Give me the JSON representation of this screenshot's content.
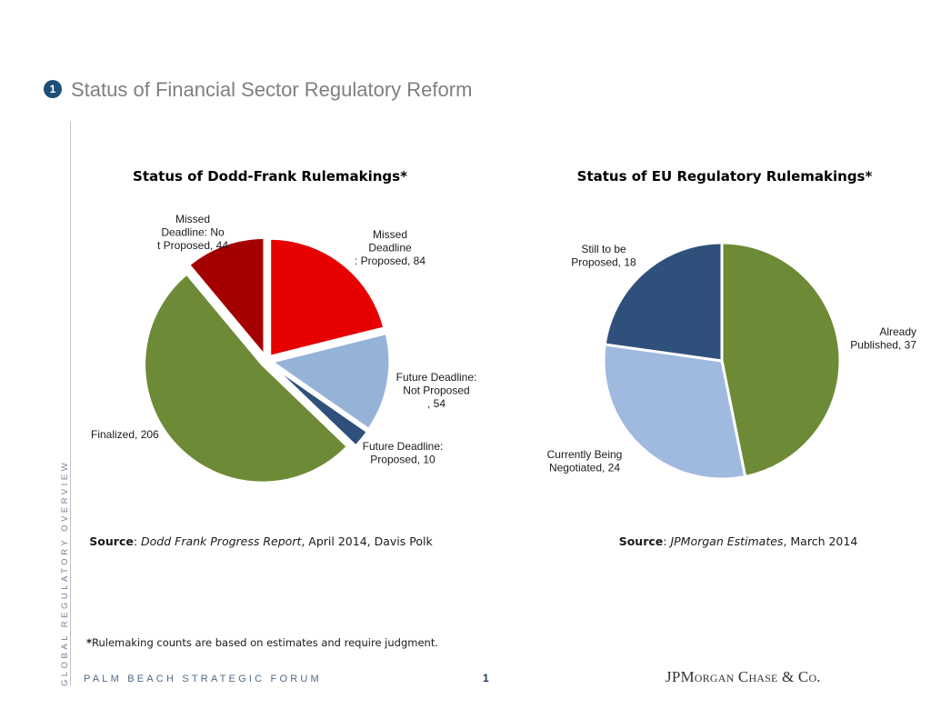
{
  "header": {
    "badge": "1",
    "title": "Status of Financial Sector Regulatory Reform"
  },
  "side_label": "GLOBAL REGULATORY OVERVIEW",
  "chart_data": [
    {
      "type": "pie",
      "title": "Status of Dodd-Frank Rulemakings*",
      "slices": [
        {
          "label": "Missed Deadline: Proposed, 84",
          "value": 84,
          "color": "#e60000"
        },
        {
          "label": "Future Deadline: Not Proposed, 54",
          "value": 54,
          "color": "#95b3d7"
        },
        {
          "label": "Future Deadline: Proposed, 10",
          "value": 10,
          "color": "#2f507a"
        },
        {
          "label": "Finalized, 206",
          "value": 206,
          "color": "#6d8a36"
        },
        {
          "label": "Missed Deadline: Not Proposed, 44",
          "value": 44,
          "color": "#a50000"
        }
      ]
    },
    {
      "type": "pie",
      "title": "Status of EU Regulatory Rulemakings*",
      "slices": [
        {
          "label": "Already Published, 37",
          "value": 37,
          "color": "#6d8a36"
        },
        {
          "label": "Currently Being Negotiated, 24",
          "value": 24,
          "color": "#9fb9df"
        },
        {
          "label": "Still to be Proposed, 18",
          "value": 18,
          "color": "#2f507a"
        }
      ]
    }
  ],
  "sources": [
    {
      "label": "Source",
      "italic": "Dodd Frank Progress Report",
      "rest": ", April 2014, Davis Polk"
    },
    {
      "label": "Source",
      "italic": "JPMorgan Estimates",
      "rest": ", March 2014"
    }
  ],
  "footnote": {
    "star": "*",
    "text": "Rulemaking counts are based on estimates and require judgment."
  },
  "footer": {
    "forum": "PALM BEACH STRATEGIC FORUM",
    "page": "1",
    "logo": "JPMorgan Chase & Co."
  }
}
